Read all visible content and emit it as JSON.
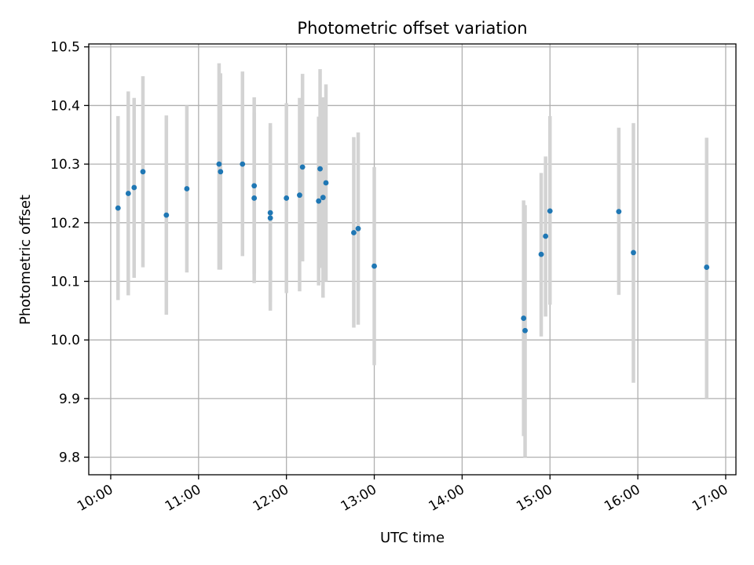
{
  "chart_data": {
    "type": "scatter",
    "title": "Photometric offset variation",
    "xlabel": "UTC time",
    "ylabel": "Photometric offset",
    "xlim": [
      "09:45",
      "17:07"
    ],
    "ylim": [
      9.77,
      10.505
    ],
    "grid": true,
    "x_ticks": [
      "10:00",
      "11:00",
      "12:00",
      "13:00",
      "14:00",
      "15:00",
      "16:00",
      "17:00"
    ],
    "y_ticks": [
      "9.8",
      "9.9",
      "10.0",
      "10.1",
      "10.2",
      "10.3",
      "10.4",
      "10.5"
    ],
    "colors": {
      "points": "#1f77b4",
      "error_bars": "#d3d3d3",
      "grid": "#b0b0b0"
    },
    "series": [
      {
        "points": [
          {
            "x": "10:05",
            "y": 10.225,
            "ylo": 10.068,
            "yhi": 10.382
          },
          {
            "x": "10:12",
            "y": 10.25,
            "ylo": 10.076,
            "yhi": 10.424
          },
          {
            "x": "10:16",
            "y": 10.26,
            "ylo": 10.106,
            "yhi": 10.413
          },
          {
            "x": "10:22",
            "y": 10.287,
            "ylo": 10.124,
            "yhi": 10.45
          },
          {
            "x": "10:38",
            "y": 10.213,
            "ylo": 10.043,
            "yhi": 10.383
          },
          {
            "x": "10:52",
            "y": 10.258,
            "ylo": 10.115,
            "yhi": 10.4
          },
          {
            "x": "11:14",
            "y": 10.3,
            "ylo": 10.12,
            "yhi": 10.472
          },
          {
            "x": "11:15",
            "y": 10.287,
            "ylo": 10.12,
            "yhi": 10.455
          },
          {
            "x": "11:30",
            "y": 10.3,
            "ylo": 10.143,
            "yhi": 10.458
          },
          {
            "x": "11:38",
            "y": 10.263,
            "ylo": 10.113,
            "yhi": 10.414
          },
          {
            "x": "11:38",
            "y": 10.242,
            "ylo": 10.097,
            "yhi": 10.388
          },
          {
            "x": "11:49",
            "y": 10.217,
            "ylo": 10.065,
            "yhi": 10.37
          },
          {
            "x": "11:49",
            "y": 10.208,
            "ylo": 10.05,
            "yhi": 10.365
          },
          {
            "x": "12:00",
            "y": 10.242,
            "ylo": 10.08,
            "yhi": 10.404
          },
          {
            "x": "12:09",
            "y": 10.247,
            "ylo": 10.083,
            "yhi": 10.413
          },
          {
            "x": "12:11",
            "y": 10.295,
            "ylo": 10.134,
            "yhi": 10.454
          },
          {
            "x": "12:22",
            "y": 10.237,
            "ylo": 10.093,
            "yhi": 10.381
          },
          {
            "x": "12:23",
            "y": 10.292,
            "ylo": 10.123,
            "yhi": 10.462
          },
          {
            "x": "12:25",
            "y": 10.243,
            "ylo": 10.072,
            "yhi": 10.414
          },
          {
            "x": "12:27",
            "y": 10.268,
            "ylo": 10.1,
            "yhi": 10.436
          },
          {
            "x": "12:46",
            "y": 10.183,
            "ylo": 10.021,
            "yhi": 10.346
          },
          {
            "x": "12:49",
            "y": 10.19,
            "ylo": 10.026,
            "yhi": 10.354
          },
          {
            "x": "13:00",
            "y": 10.126,
            "ylo": 9.957,
            "yhi": 10.295
          },
          {
            "x": "14:42",
            "y": 10.037,
            "ylo": 9.836,
            "yhi": 10.238
          },
          {
            "x": "14:43",
            "y": 10.016,
            "ylo": 9.8,
            "yhi": 10.23
          },
          {
            "x": "14:54",
            "y": 10.146,
            "ylo": 10.006,
            "yhi": 10.285
          },
          {
            "x": "14:57",
            "y": 10.177,
            "ylo": 10.04,
            "yhi": 10.313
          },
          {
            "x": "15:00",
            "y": 10.22,
            "ylo": 10.06,
            "yhi": 10.382
          },
          {
            "x": "15:47",
            "y": 10.219,
            "ylo": 10.077,
            "yhi": 10.362
          },
          {
            "x": "15:57",
            "y": 10.149,
            "ylo": 9.927,
            "yhi": 10.37
          },
          {
            "x": "16:47",
            "y": 10.124,
            "ylo": 9.9,
            "yhi": 10.345
          }
        ]
      }
    ]
  }
}
